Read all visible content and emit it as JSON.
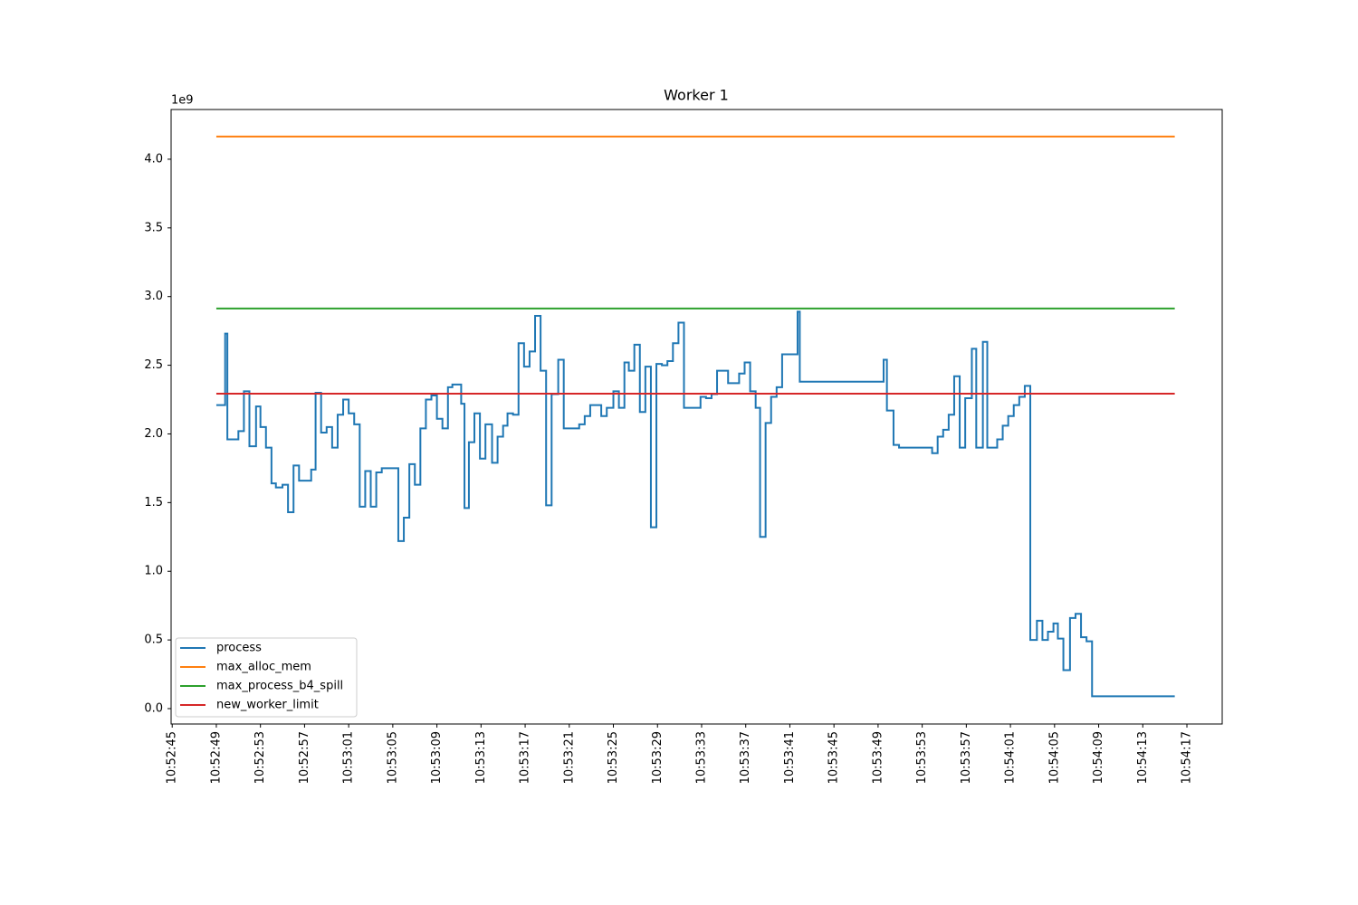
{
  "chart_data": {
    "type": "line",
    "title": "Worker 1",
    "offset_text": "1e9",
    "drawstyle": "steps-post",
    "series": [
      {
        "name": "process",
        "color": "#1f77b4",
        "x": [
          "10:52:49.0",
          "10:52:49.8",
          "10:52:50.0",
          "10:52:51.0",
          "10:52:51.5",
          "10:52:52.0",
          "10:52:52.6",
          "10:52:53.0",
          "10:52:53.5",
          "10:52:54.0",
          "10:52:54.4",
          "10:52:55.0",
          "10:52:55.5",
          "10:52:56.0",
          "10:52:56.5",
          "10:52:57.6",
          "10:52:58.0",
          "10:52:58.5",
          "10:52:59.0",
          "10:52:59.5",
          "10:53:00.0",
          "10:53:00.5",
          "10:53:01.0",
          "10:53:01.5",
          "10:53:02.0",
          "10:53:02.5",
          "10:53:03.0",
          "10:53:03.5",
          "10:53:04.0",
          "10:53:05.5",
          "10:53:06.0",
          "10:53:06.5",
          "10:53:07.0",
          "10:53:07.5",
          "10:53:08.0",
          "10:53:08.5",
          "10:53:09.0",
          "10:53:09.5",
          "10:53:10.0",
          "10:53:10.4",
          "10:53:11.2",
          "10:53:11.5",
          "10:53:11.9",
          "10:53:12.4",
          "10:53:12.9",
          "10:53:13.4",
          "10:53:14.0",
          "10:53:14.5",
          "10:53:15.0",
          "10:53:15.4",
          "10:53:15.9",
          "10:53:16.4",
          "10:53:16.9",
          "10:53:17.4",
          "10:53:17.9",
          "10:53:18.4",
          "10:53:18.9",
          "10:53:19.4",
          "10:53:20.0",
          "10:53:20.5",
          "10:53:21.9",
          "10:53:22.4",
          "10:53:22.9",
          "10:53:23.9",
          "10:53:24.4",
          "10:53:25.0",
          "10:53:25.5",
          "10:53:26.0",
          "10:53:26.4",
          "10:53:26.9",
          "10:53:27.4",
          "10:53:27.9",
          "10:53:28.4",
          "10:53:28.9",
          "10:53:29.4",
          "10:53:29.9",
          "10:53:30.4",
          "10:53:30.9",
          "10:53:31.4",
          "10:53:32.9",
          "10:53:33.4",
          "10:53:33.9",
          "10:53:34.4",
          "10:53:35.4",
          "10:53:36.4",
          "10:53:36.9",
          "10:53:37.4",
          "10:53:37.9",
          "10:53:38.3",
          "10:53:38.8",
          "10:53:39.3",
          "10:53:39.8",
          "10:53:40.3",
          "10:53:41.7",
          "10:53:41.9",
          "10:53:49.5",
          "10:53:49.8",
          "10:53:50.4",
          "10:53:50.9",
          "10:53:53.6",
          "10:53:53.9",
          "10:53:54.4",
          "10:53:54.9",
          "10:53:55.4",
          "10:53:55.9",
          "10:53:56.4",
          "10:53:56.9",
          "10:53:57.5",
          "10:53:57.9",
          "10:53:58.5",
          "10:53:58.9",
          "10:53:59.8",
          "10:54:00.3",
          "10:54:00.8",
          "10:54:01.3",
          "10:54:01.8",
          "10:54:02.3",
          "10:54:02.8",
          "10:54:03.4",
          "10:54:03.9",
          "10:54:04.4",
          "10:54:04.9",
          "10:54:05.3",
          "10:54:05.8",
          "10:54:06.4",
          "10:54:06.9",
          "10:54:07.4",
          "10:54:07.9",
          "10:54:08.4",
          "10:54:15.9"
        ],
        "values": [
          2.21,
          2.73,
          1.96,
          2.02,
          2.31,
          1.91,
          2.2,
          2.05,
          1.9,
          1.64,
          1.61,
          1.63,
          1.43,
          1.77,
          1.66,
          1.74,
          2.3,
          2.01,
          2.05,
          1.9,
          2.14,
          2.25,
          2.15,
          2.07,
          1.47,
          1.73,
          1.47,
          1.72,
          1.75,
          1.22,
          1.39,
          1.78,
          1.63,
          2.04,
          2.25,
          2.28,
          2.11,
          2.04,
          2.34,
          2.36,
          2.22,
          1.46,
          1.94,
          2.15,
          1.82,
          2.07,
          1.79,
          1.98,
          2.06,
          2.15,
          2.14,
          2.66,
          2.49,
          2.6,
          2.86,
          2.46,
          1.48,
          2.29,
          2.54,
          2.04,
          2.07,
          2.13,
          2.21,
          2.13,
          2.19,
          2.31,
          2.19,
          2.52,
          2.46,
          2.65,
          2.16,
          2.49,
          1.32,
          2.51,
          2.5,
          2.53,
          2.66,
          2.81,
          2.19,
          2.27,
          2.26,
          2.29,
          2.46,
          2.37,
          2.44,
          2.52,
          2.31,
          2.19,
          1.25,
          2.08,
          2.27,
          2.34,
          2.58,
          2.89,
          2.38,
          2.54,
          2.17,
          1.92,
          1.9,
          1.9,
          1.86,
          1.98,
          2.03,
          2.14,
          2.42,
          1.9,
          2.26,
          2.62,
          1.9,
          2.67,
          1.9,
          1.96,
          2.06,
          2.13,
          2.21,
          2.27,
          2.35,
          0.5,
          0.64,
          0.5,
          0.56,
          0.62,
          0.51,
          0.28,
          0.66,
          0.69,
          0.52,
          0.49,
          0.09,
          0.09
        ]
      },
      {
        "name": "max_alloc_mem",
        "color": "#ff7f0e",
        "x": [
          "10:52:49.0",
          "10:54:15.9"
        ],
        "values": [
          4.165,
          4.165
        ]
      },
      {
        "name": "max_process_b4_spill",
        "color": "#2ca02c",
        "x": [
          "10:52:49.0",
          "10:54:15.9"
        ],
        "values": [
          2.913,
          2.913
        ]
      },
      {
        "name": "new_worker_limit",
        "color": "#d62728",
        "x": [
          "10:52:49.0",
          "10:54:15.9"
        ],
        "values": [
          2.293,
          2.293
        ]
      }
    ],
    "xlim": [
      "10:52:44.9",
      "10:54:20.2"
    ],
    "xticks": [
      "10:52:45",
      "10:52:49",
      "10:52:53",
      "10:52:57",
      "10:53:01",
      "10:53:05",
      "10:53:09",
      "10:53:13",
      "10:53:17",
      "10:53:21",
      "10:53:25",
      "10:53:29",
      "10:53:33",
      "10:53:37",
      "10:53:41",
      "10:53:45",
      "10:53:49",
      "10:53:53",
      "10:53:57",
      "10:54:01",
      "10:54:05",
      "10:54:09",
      "10:54:13",
      "10:54:17"
    ],
    "ylim": [
      -0.112,
      4.362
    ],
    "yticks": [
      {
        "value": 0,
        "label": "0.0"
      },
      0.5,
      {
        "value": 1,
        "label": "1.0"
      },
      1.5,
      {
        "value": 2,
        "label": "2.0"
      },
      2.5,
      {
        "value": 3,
        "label": "3.0"
      },
      3.5,
      {
        "value": 4,
        "label": "4.0"
      }
    ],
    "legend": "lower left",
    "grid": false
  }
}
